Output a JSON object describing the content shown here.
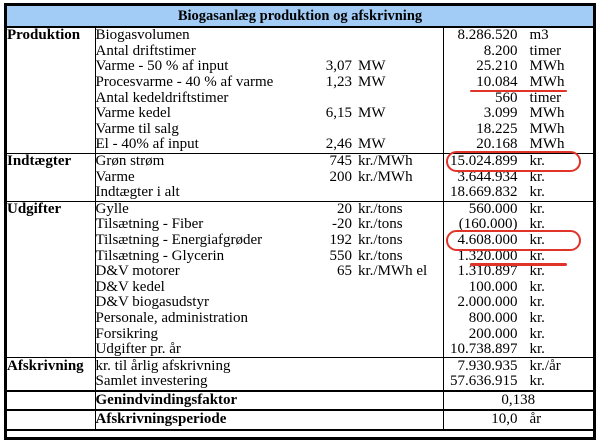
{
  "title": "Biogasanlæg produktion og afskrivning",
  "colors": {
    "title_background": "#A2CCF5",
    "border": "#000000",
    "annotation_red": "#E0342A",
    "text": "#000000",
    "background": "#FFFFFF"
  },
  "rows": [
    {
      "section": "Produktion",
      "label": "Biogasvolumen",
      "rate": "",
      "rate_unit": "",
      "value": "8.286.520",
      "unit": "m3",
      "annotation": ""
    },
    {
      "section": "",
      "label": "Antal driftstimer",
      "rate": "",
      "rate_unit": "",
      "value": "8.200",
      "unit": "timer",
      "annotation": ""
    },
    {
      "section": "",
      "label": "Varme - 50 % af input",
      "rate": "3,07",
      "rate_unit": "MW",
      "value": "25.210",
      "unit": "MWh",
      "annotation": ""
    },
    {
      "section": "",
      "label": "Procesvarme - 40 % af varme",
      "rate": "1,23",
      "rate_unit": "MW",
      "value": "10.084",
      "unit": "MWh",
      "annotation": "underline"
    },
    {
      "section": "",
      "label": "Antal kedeldriftstimer",
      "rate": "",
      "rate_unit": "",
      "value": "560",
      "unit": "timer",
      "annotation": ""
    },
    {
      "section": "",
      "label": "Varme kedel",
      "rate": "6,15",
      "rate_unit": "MW",
      "value": "3.099",
      "unit": "MWh",
      "annotation": ""
    },
    {
      "section": "",
      "label": "Varme til salg",
      "rate": "",
      "rate_unit": "",
      "value": "18.225",
      "unit": "MWh",
      "annotation": ""
    },
    {
      "section": "",
      "label": "El - 40% af input",
      "rate": "2,46",
      "rate_unit": "MW",
      "value": "20.168",
      "unit": "MWh",
      "annotation": ""
    },
    {
      "section": "Indtægter",
      "label": "Grøn strøm",
      "rate": "745",
      "rate_unit": "kr./MWh",
      "value": "15.024.899",
      "unit": "kr.",
      "annotation": "circle",
      "section_start": true
    },
    {
      "section": "",
      "label": "Varme",
      "rate": "200",
      "rate_unit": "kr./MWh",
      "value": "3.644.934",
      "unit": "kr.",
      "annotation": ""
    },
    {
      "section": "",
      "label": "Indtægter i alt",
      "rate": "",
      "rate_unit": "",
      "value": "18.669.832",
      "unit": "kr.",
      "annotation": ""
    },
    {
      "section": "Udgifter",
      "label": "Gylle",
      "rate": "20",
      "rate_unit": "kr./tons",
      "value": "560.000",
      "unit": "kr.",
      "annotation": "",
      "section_start": true
    },
    {
      "section": "",
      "label": "Tilsætning - Fiber",
      "rate": "-20",
      "rate_unit": "kr./tons",
      "value": "(160.000)",
      "unit": "kr.",
      "annotation": ""
    },
    {
      "section": "",
      "label": "Tilsætning - Energiafgrøder",
      "rate": "192",
      "rate_unit": "kr./tons",
      "value": "4.608.000",
      "unit": "kr.",
      "annotation": "circle"
    },
    {
      "section": "",
      "label": "Tilsætning - Glycerin",
      "rate": "550",
      "rate_unit": "kr./tons",
      "value": "1.320.000",
      "unit": "kr.",
      "annotation": "underline"
    },
    {
      "section": "",
      "label": "D&V motorer",
      "rate": "65",
      "rate_unit": "kr./MWh el",
      "value": "1.310.897",
      "unit": "kr.",
      "annotation": ""
    },
    {
      "section": "",
      "label": "D&V kedel",
      "rate": "",
      "rate_unit": "",
      "value": "100.000",
      "unit": "kr.",
      "annotation": ""
    },
    {
      "section": "",
      "label": "D&V biogasudstyr",
      "rate": "",
      "rate_unit": "",
      "value": "2.000.000",
      "unit": "kr.",
      "annotation": ""
    },
    {
      "section": "",
      "label": "Personale, administration",
      "rate": "",
      "rate_unit": "",
      "value": "800.000",
      "unit": "kr.",
      "annotation": ""
    },
    {
      "section": "",
      "label": "Forsikring",
      "rate": "",
      "rate_unit": "",
      "value": "200.000",
      "unit": "kr.",
      "annotation": ""
    },
    {
      "section": "",
      "label": "Udgifter pr. år",
      "rate": "",
      "rate_unit": "",
      "value": "10.738.897",
      "unit": "kr.",
      "annotation": ""
    },
    {
      "section": "Afskrivning",
      "label": "kr. til årlig afskrivning",
      "rate": "",
      "rate_unit": "",
      "value": "7.930.935",
      "unit": "kr./år",
      "annotation": "",
      "section_start": true
    },
    {
      "section": "",
      "label": "Samlet investering",
      "rate": "",
      "rate_unit": "",
      "value": "57.636.915",
      "unit": "kr.",
      "annotation": ""
    },
    {
      "section": "",
      "label": "Genindvindingsfaktor",
      "rate": "",
      "rate_unit": "",
      "value": "0,138",
      "unit": "",
      "annotation": "",
      "heavy": true,
      "bold": true,
      "value_align": "center"
    },
    {
      "section": "",
      "label": "Afskrivningsperiode",
      "rate": "",
      "rate_unit": "",
      "value": "10,0",
      "unit": "år",
      "annotation": "",
      "heavy": true,
      "bold": true
    }
  ]
}
